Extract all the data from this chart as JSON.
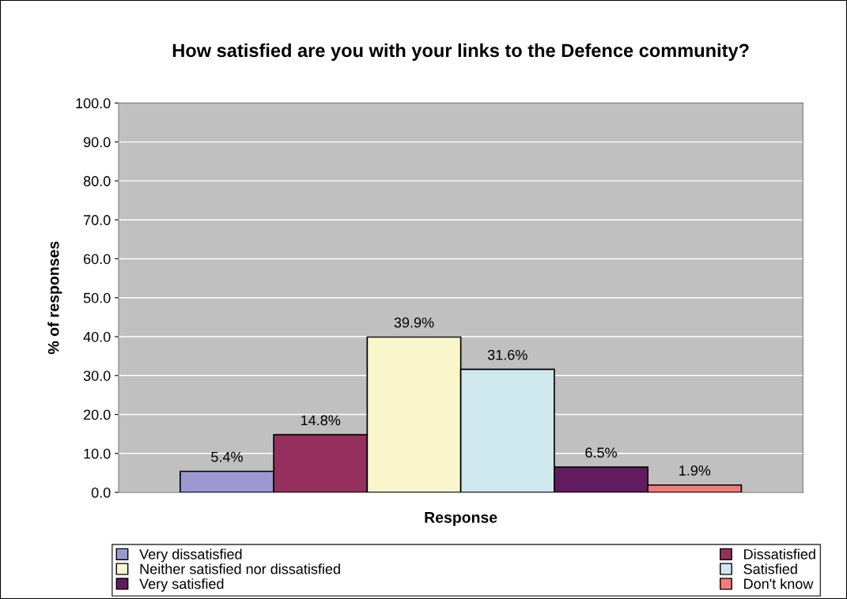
{
  "chart_data": {
    "type": "bar",
    "title": "How satisfied are you with your links to the Defence community?",
    "xlabel": "Response",
    "ylabel": "% of responses",
    "categories": [
      null
    ],
    "series": [
      {
        "name": "Very dissatisfied",
        "color": "#9b99d0",
        "values": [
          5.4
        ],
        "value_labels": [
          "5.4%"
        ]
      },
      {
        "name": "Dissatisfied",
        "color": "#95305e",
        "values": [
          14.8
        ],
        "value_labels": [
          "14.8%"
        ]
      },
      {
        "name": "Neither satisfied nor dissatisfied",
        "color": "#f9f6cc",
        "values": [
          39.9
        ],
        "value_labels": [
          "39.9%"
        ]
      },
      {
        "name": "Satisfied",
        "color": "#cfe9ef",
        "values": [
          31.6
        ],
        "value_labels": [
          "31.6%"
        ]
      },
      {
        "name": "Very satisfied",
        "color": "#611b5e",
        "values": [
          6.5
        ],
        "value_labels": [
          "6.5%"
        ]
      },
      {
        "name": "Don't know",
        "color": "#f47b7b",
        "values": [
          1.9
        ],
        "value_labels": [
          "1.9%"
        ]
      }
    ],
    "ylim": [
      0,
      100
    ],
    "yticks": [
      {
        "value": 0,
        "label": "0.0"
      },
      {
        "value": 10,
        "label": "10.0"
      },
      {
        "value": 20,
        "label": "20.0"
      },
      {
        "value": 30,
        "label": "30.0"
      },
      {
        "value": 40,
        "label": "40.0"
      },
      {
        "value": 50,
        "label": "50.0"
      },
      {
        "value": 60,
        "label": "60.0"
      },
      {
        "value": 70,
        "label": "70.0"
      },
      {
        "value": 80,
        "label": "80.0"
      },
      {
        "value": 90,
        "label": "90.0"
      },
      {
        "value": 100,
        "label": "100.0"
      }
    ],
    "grid": "y",
    "legend": "bottom"
  }
}
